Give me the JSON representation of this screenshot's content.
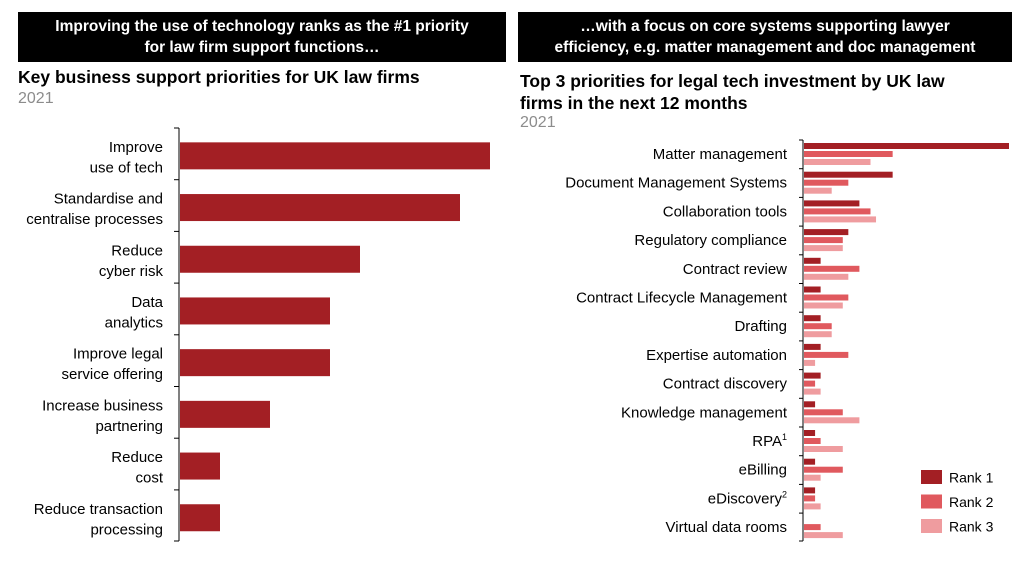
{
  "banner_left": [
    "Improving the use of technology ranks as the #1 priority",
    "for law firm support functions…"
  ],
  "banner_right": [
    "…with a focus on core systems supporting lawyer",
    "efficiency, e.g. matter management and doc management"
  ],
  "chart_data": [
    {
      "type": "bar",
      "orientation": "horizontal",
      "title": "Key business support priorities for UK law firms",
      "subtitle": "2021",
      "categories": [
        [
          "Improve",
          "use of tech"
        ],
        [
          "Standardise and",
          "centralise processes"
        ],
        [
          "Reduce",
          "cyber risk"
        ],
        [
          "Data",
          "analytics"
        ],
        [
          "Improve legal",
          "service offering"
        ],
        [
          "Increase business",
          "partnering"
        ],
        [
          "Reduce",
          "cost"
        ],
        [
          "Reduce transaction",
          "processing"
        ]
      ],
      "values": [
        31,
        28,
        18,
        15,
        15,
        9,
        4,
        4
      ],
      "xlim": [
        0,
        31
      ],
      "color": "#a31f24",
      "grid": false,
      "axis_labels": false
    },
    {
      "type": "bar",
      "orientation": "horizontal",
      "title": "Top 3 priorities for legal tech investment by UK law firms in the next 12 months",
      "title_lines": [
        "Top 3 priorities for legal tech investment by UK law",
        "firms in the next 12 months"
      ],
      "subtitle": "2021",
      "categories": [
        {
          "label": "Matter management",
          "sup": ""
        },
        {
          "label": "Document Management Systems",
          "sup": ""
        },
        {
          "label": "Collaboration tools",
          "sup": ""
        },
        {
          "label": "Regulatory compliance",
          "sup": ""
        },
        {
          "label": "Contract review",
          "sup": ""
        },
        {
          "label": "Contract Lifecycle Management",
          "sup": ""
        },
        {
          "label": "Drafting",
          "sup": ""
        },
        {
          "label": "Expertise automation",
          "sup": ""
        },
        {
          "label": "Contract discovery",
          "sup": ""
        },
        {
          "label": "Knowledge management",
          "sup": ""
        },
        {
          "label": "RPA",
          "sup": "1"
        },
        {
          "label": "eBilling",
          "sup": ""
        },
        {
          "label": "eDiscovery",
          "sup": "2"
        },
        {
          "label": "Virtual data rooms",
          "sup": ""
        }
      ],
      "series": [
        {
          "name": "Rank 1",
          "color": "#a31f24",
          "values": [
            37,
            16,
            10,
            8,
            3,
            3,
            3,
            3,
            3,
            2,
            2,
            2,
            2,
            0
          ]
        },
        {
          "name": "Rank 2",
          "color": "#e0595e",
          "values": [
            16,
            8,
            12,
            7,
            10,
            8,
            5,
            8,
            2,
            7,
            3,
            7,
            2,
            3
          ]
        },
        {
          "name": "Rank 3",
          "color": "#ef9c9f",
          "values": [
            12,
            5,
            13,
            7,
            8,
            7,
            5,
            2,
            3,
            10,
            7,
            3,
            3,
            7
          ]
        }
      ],
      "xlim": [
        0,
        37
      ],
      "legend_position": "bottom-right",
      "grid": false,
      "axis_labels": false
    }
  ]
}
